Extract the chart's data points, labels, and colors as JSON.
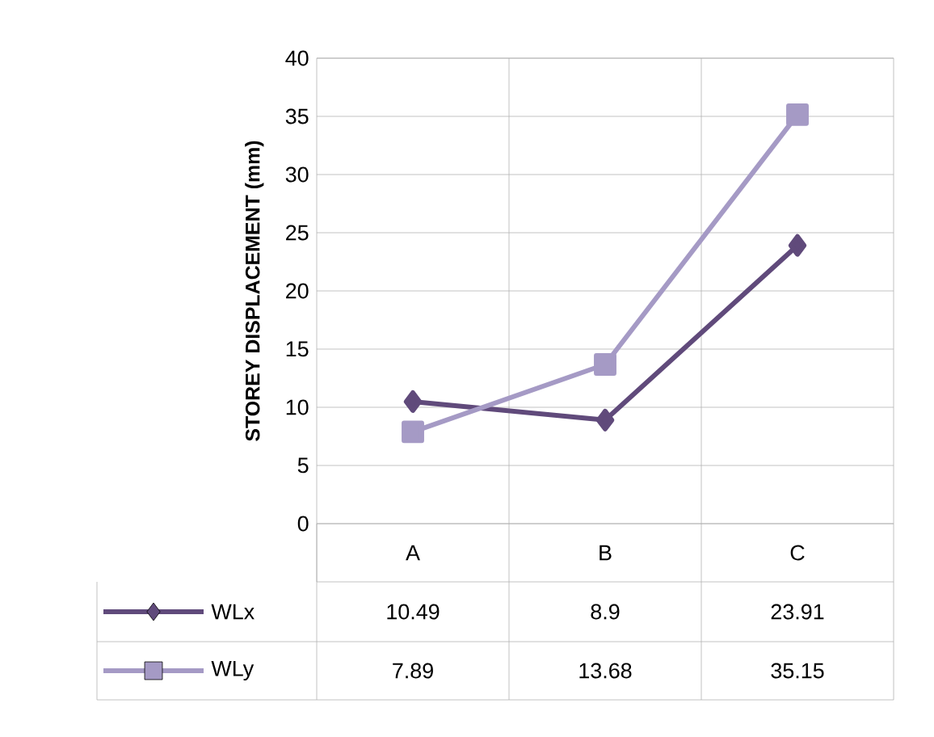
{
  "chart_data": {
    "type": "line",
    "ylabel": "STOREY DISPLACEMENT (mm)",
    "categories": [
      "A",
      "B",
      "C"
    ],
    "series": [
      {
        "name": "WLx",
        "color": "#604a7b",
        "marker": "diamond",
        "values": [
          10.49,
          8.9,
          23.91
        ]
      },
      {
        "name": "WLy",
        "color": "#a59ac5",
        "marker": "square",
        "values": [
          7.89,
          13.68,
          35.15
        ]
      }
    ],
    "ylim": [
      0,
      40
    ],
    "yticks": [
      0,
      5,
      10,
      15,
      20,
      25,
      30,
      35,
      40
    ],
    "grid": true,
    "legend": "bottom left",
    "data_labels": true,
    "line_style": "solid"
  }
}
